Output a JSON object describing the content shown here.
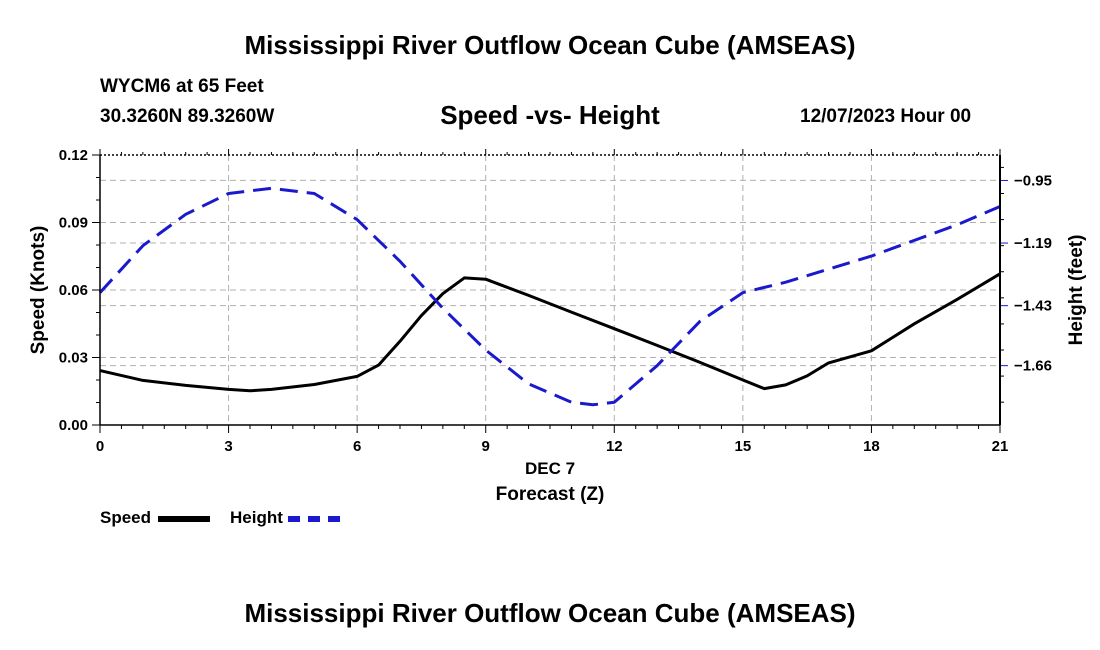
{
  "header": {
    "title": "Mississippi River Outflow Ocean Cube (AMSEAS)",
    "station": "WYCM6 at 65 Feet",
    "coords": "30.3260N  89.3260W",
    "subtitle": "Speed -vs- Height",
    "datetime": "12/07/2023 Hour 00"
  },
  "footer": {
    "title": "Mississippi River Outflow Ocean Cube (AMSEAS)"
  },
  "legend": {
    "speed": "Speed",
    "height": "Height"
  },
  "colors": {
    "speed": "#000000",
    "height": "#1a1acc",
    "grid": "#b0b0b0"
  },
  "chart_data": {
    "type": "line",
    "title": "Speed -vs- Height",
    "xlabel": "DEC 7",
    "xlabel2": "Forecast (Z)",
    "ylabel": "Speed (Knots)",
    "y2label": "Height (feet)",
    "xlim": [
      0,
      21
    ],
    "ylim": [
      0,
      0.12
    ],
    "y2lim": [
      -1.8875,
      -0.8525
    ],
    "x_ticks": [
      "0",
      "3",
      "6",
      "9",
      "12",
      "15",
      "18",
      "21"
    ],
    "y_ticks": [
      "0.00",
      "0.03",
      "0.06",
      "0.09",
      "0.12"
    ],
    "y2_ticks": [
      "-1.66",
      "-1.43",
      "-1.19",
      "-0.95"
    ],
    "series": [
      {
        "name": "Speed",
        "axis": "left",
        "style": "solid",
        "x": [
          0,
          1,
          2,
          3,
          3.5,
          4,
          5,
          6,
          6.5,
          7,
          7.5,
          8,
          8.5,
          9,
          10,
          11,
          12,
          13,
          14,
          15,
          15.5,
          16,
          16.5,
          17,
          18,
          19,
          20,
          21
        ],
        "values": [
          0.0242,
          0.0198,
          0.0176,
          0.0158,
          0.0152,
          0.0158,
          0.018,
          0.0216,
          0.0266,
          0.0372,
          0.0486,
          0.0584,
          0.0654,
          0.0648,
          0.0576,
          0.0502,
          0.0428,
          0.0354,
          0.0278,
          0.02,
          0.0162,
          0.0178,
          0.0218,
          0.0276,
          0.033,
          0.045,
          0.0558,
          0.0672
        ]
      },
      {
        "name": "Height",
        "axis": "right",
        "style": "dashed",
        "x": [
          0,
          1,
          2,
          3,
          3.5,
          4,
          5,
          6,
          7,
          8,
          9,
          10,
          11,
          11.5,
          12,
          13,
          14,
          15,
          16,
          17,
          18,
          19,
          20,
          21
        ],
        "values": [
          -1.38,
          -1.2,
          -1.08,
          -1.0,
          -0.99,
          -0.98,
          -1.0,
          -1.1,
          -1.26,
          -1.44,
          -1.6,
          -1.73,
          -1.8,
          -1.81,
          -1.8,
          -1.66,
          -1.49,
          -1.38,
          -1.34,
          -1.29,
          -1.24,
          -1.18,
          -1.12,
          -1.05
        ]
      }
    ]
  }
}
